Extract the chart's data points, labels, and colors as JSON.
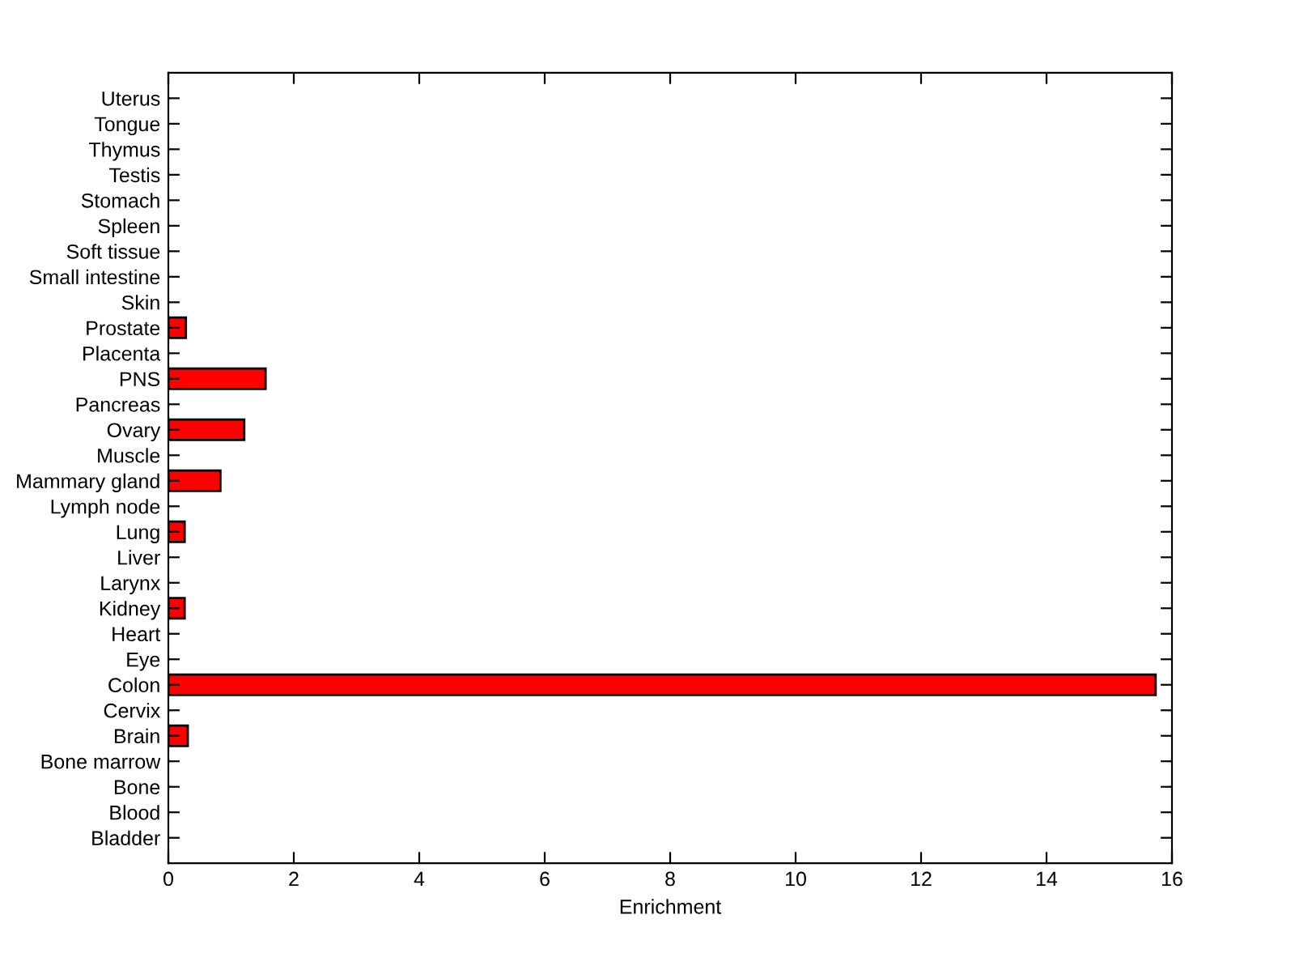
{
  "chart_data": {
    "type": "bar",
    "orientation": "horizontal",
    "xlabel": "Enrichment",
    "categories": [
      "Uterus",
      "Tongue",
      "Thymus",
      "Testis",
      "Stomach",
      "Spleen",
      "Soft tissue",
      "Small intestine",
      "Skin",
      "Prostate",
      "Placenta",
      "PNS",
      "Pancreas",
      "Ovary",
      "Muscle",
      "Mammary gland",
      "Lymph node",
      "Lung",
      "Liver",
      "Larynx",
      "Kidney",
      "Heart",
      "Eye",
      "Colon",
      "Cervix",
      "Brain",
      "Bone marrow",
      "Bone",
      "Blood",
      "Bladder"
    ],
    "values": [
      0,
      0,
      0,
      0,
      0,
      0,
      0,
      0,
      0,
      0.28,
      0,
      1.55,
      0,
      1.21,
      0,
      0.83,
      0,
      0.26,
      0,
      0,
      0.26,
      0,
      0,
      15.74,
      0,
      0.31,
      0,
      0,
      0,
      0
    ],
    "color": "#ff0000",
    "xlim": [
      0,
      16
    ],
    "xticks": [
      0,
      2,
      4,
      6,
      8,
      10,
      12,
      14,
      16
    ],
    "grid": false
  }
}
